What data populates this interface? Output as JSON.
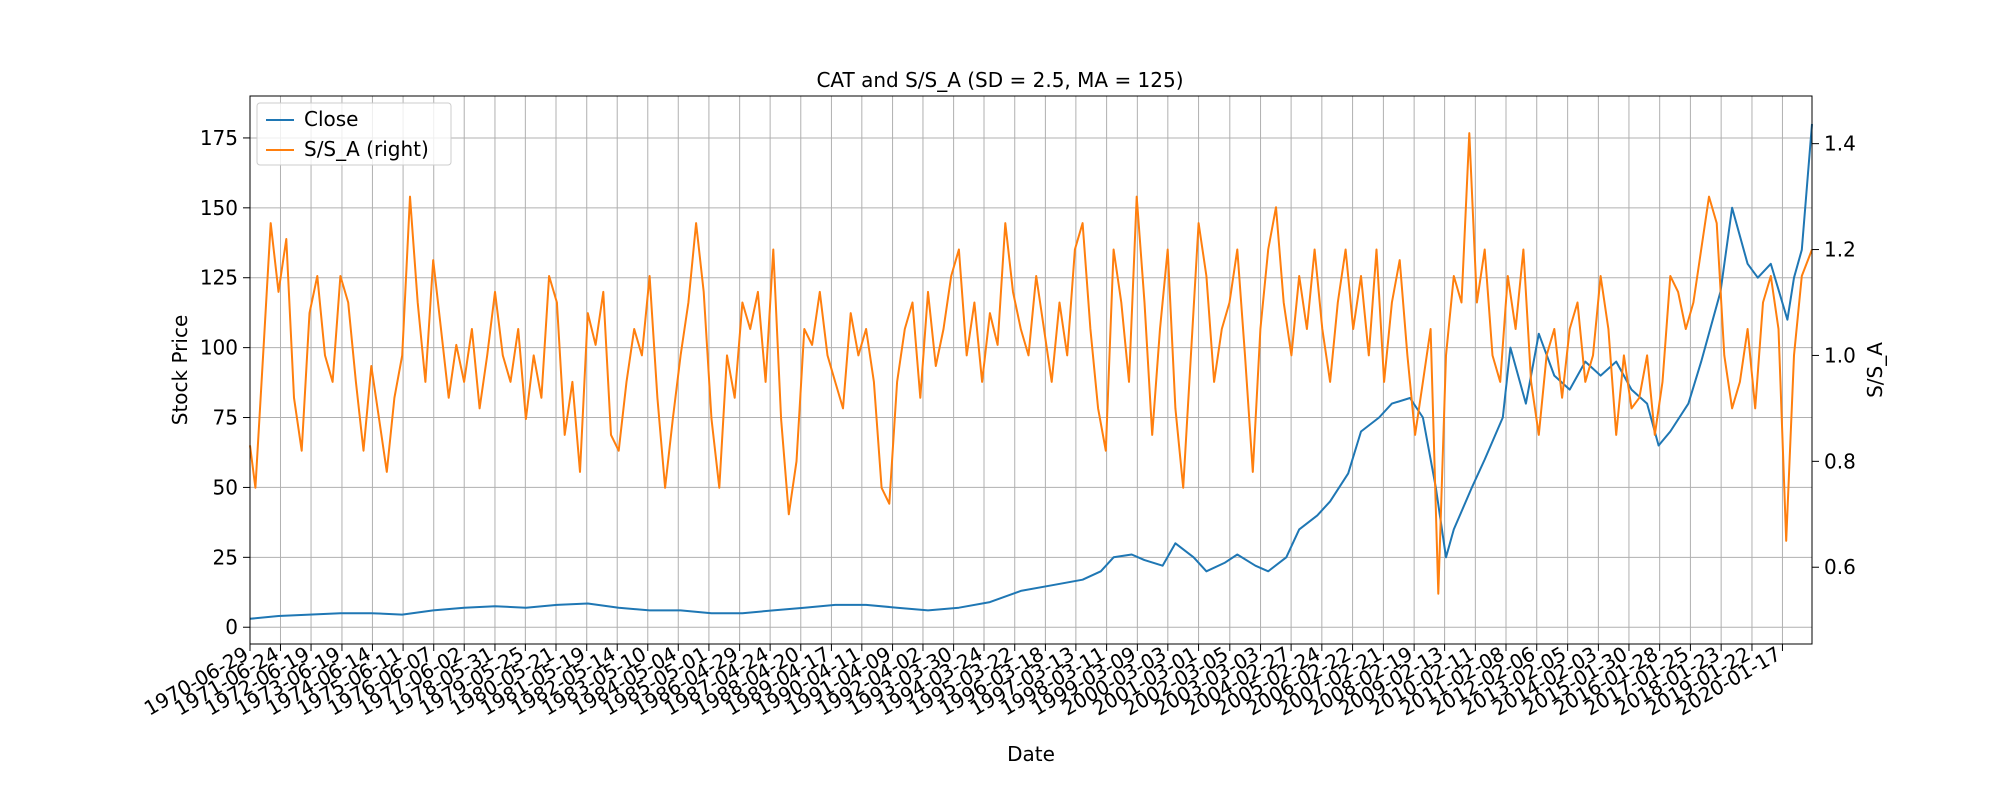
{
  "chart_data": {
    "type": "line",
    "title": "CAT and S/S_A (SD = 2.5, MA = 125)",
    "xlabel": "Date",
    "ylabel": "Stock Price",
    "ylabel_right": "S/S_A",
    "xlim": [
      "1970-06-29",
      "2020-12-31"
    ],
    "ylim": [
      -6,
      190
    ],
    "ylim_right": [
      0.455,
      1.49
    ],
    "yticks": [
      0,
      25,
      50,
      75,
      100,
      125,
      150,
      175
    ],
    "yticks_right": [
      0.6,
      0.8,
      1.0,
      1.2,
      1.4
    ],
    "ytick_labels_right": [
      "0.6",
      "0.8",
      "1.0",
      "1.2",
      "1.4"
    ],
    "xticks": [
      "1970-06-29",
      "1971-06-24",
      "1972-06-19",
      "1973-06-19",
      "1974-06-14",
      "1975-06-11",
      "1976-06-07",
      "1977-06-02",
      "1978-05-31",
      "1979-05-25",
      "1980-05-21",
      "1981-05-19",
      "1982-05-14",
      "1983-05-10",
      "1984-05-04",
      "1985-05-01",
      "1986-04-29",
      "1987-04-24",
      "1988-04-20",
      "1989-04-17",
      "1990-04-11",
      "1991-04-09",
      "1992-04-02",
      "1993-03-30",
      "1994-03-24",
      "1995-03-22",
      "1996-03-18",
      "1997-03-13",
      "1998-03-11",
      "1999-03-09",
      "2000-03-03",
      "2001-03-01",
      "2002-03-05",
      "2003-03-03",
      "2004-02-27",
      "2005-02-24",
      "2006-02-22",
      "2007-02-21",
      "2008-02-19",
      "2009-02-13",
      "2010-02-11",
      "2011-02-08",
      "2012-02-06",
      "2013-02-05",
      "2014-02-03",
      "2015-01-30",
      "2016-01-28",
      "2017-01-25",
      "2018-01-23",
      "2019-01-22",
      "2020-01-17"
    ],
    "grid": true,
    "legend": "upper left",
    "series": [
      {
        "name": "Close",
        "axis": "left",
        "color": "#1f77b4",
        "x": [
          "1970-06-29",
          "1971-06-01",
          "1972-06-01",
          "1973-06-01",
          "1974-06-01",
          "1975-06-01",
          "1976-06-01",
          "1977-06-01",
          "1978-06-01",
          "1979-06-01",
          "1980-06-01",
          "1981-06-01",
          "1982-06-01",
          "1983-06-01",
          "1984-06-01",
          "1985-06-01",
          "1986-06-01",
          "1987-06-01",
          "1988-06-01",
          "1989-06-01",
          "1990-06-01",
          "1991-06-01",
          "1992-06-01",
          "1993-06-01",
          "1994-06-01",
          "1995-06-01",
          "1996-06-01",
          "1997-06-01",
          "1998-01-01",
          "1998-06-01",
          "1999-01-01",
          "1999-06-01",
          "2000-01-01",
          "2000-06-01",
          "2001-01-01",
          "2001-06-01",
          "2002-01-01",
          "2002-06-01",
          "2003-01-01",
          "2003-06-01",
          "2004-01-01",
          "2004-06-01",
          "2005-01-01",
          "2005-06-01",
          "2006-01-01",
          "2006-06-01",
          "2007-01-01",
          "2007-06-01",
          "2008-01-01",
          "2008-06-01",
          "2008-11-01",
          "2009-03-01",
          "2009-06-01",
          "2010-01-01",
          "2010-06-01",
          "2011-01-01",
          "2011-04-01",
          "2011-10-01",
          "2012-03-01",
          "2012-09-01",
          "2013-03-01",
          "2013-09-01",
          "2014-03-01",
          "2014-09-01",
          "2015-03-01",
          "2015-09-01",
          "2016-01-15",
          "2016-06-01",
          "2017-01-01",
          "2017-06-01",
          "2018-01-15",
          "2018-06-01",
          "2018-12-01",
          "2019-04-01",
          "2019-09-01",
          "2020-03-15",
          "2020-06-01",
          "2020-09-01",
          "2020-12-31"
        ],
        "values": [
          3,
          4,
          4.5,
          5,
          5,
          4.5,
          6,
          7,
          7.5,
          7,
          8,
          8.5,
          7,
          6,
          6,
          5,
          5,
          6,
          7,
          8,
          8,
          7,
          6,
          7,
          9,
          13,
          15,
          17,
          20,
          25,
          26,
          24,
          22,
          30,
          25,
          20,
          23,
          26,
          22,
          20,
          25,
          35,
          40,
          45,
          55,
          70,
          75,
          80,
          82,
          75,
          50,
          25,
          35,
          50,
          60,
          75,
          100,
          80,
          105,
          90,
          85,
          95,
          90,
          95,
          85,
          80,
          65,
          70,
          80,
          95,
          120,
          150,
          130,
          125,
          130,
          110,
          125,
          135,
          180
        ]
      },
      {
        "name": "S/S_A (right)",
        "axis": "right",
        "color": "#ff7f0e",
        "x": [
          "1970-06-29",
          "1970-09-01",
          "1970-12-01",
          "1971-03-01",
          "1971-06-01",
          "1971-09-01",
          "1971-12-01",
          "1972-03-01",
          "1972-06-01",
          "1972-09-01",
          "1972-12-01",
          "1973-03-01",
          "1973-06-01",
          "1973-09-01",
          "1973-12-01",
          "1974-03-01",
          "1974-06-01",
          "1974-09-01",
          "1974-12-01",
          "1975-03-01",
          "1975-06-01",
          "1975-09-01",
          "1975-12-01",
          "1976-03-01",
          "1976-06-01",
          "1976-09-01",
          "1976-12-01",
          "1977-03-01",
          "1977-06-01",
          "1977-09-01",
          "1977-12-01",
          "1978-03-01",
          "1978-06-01",
          "1978-09-01",
          "1978-12-01",
          "1979-03-01",
          "1979-06-01",
          "1979-09-01",
          "1979-12-01",
          "1980-03-01",
          "1980-06-01",
          "1980-09-01",
          "1980-12-01",
          "1981-03-01",
          "1981-06-01",
          "1981-09-01",
          "1981-12-01",
          "1982-03-01",
          "1982-06-01",
          "1982-09-01",
          "1982-12-01",
          "1983-03-01",
          "1983-06-01",
          "1983-09-01",
          "1983-12-01",
          "1984-03-01",
          "1984-06-01",
          "1984-09-01",
          "1984-12-01",
          "1985-03-01",
          "1985-06-01",
          "1985-09-01",
          "1985-12-01",
          "1986-03-01",
          "1986-06-01",
          "1986-09-01",
          "1986-12-01",
          "1987-03-01",
          "1987-06-01",
          "1987-09-01",
          "1987-12-01",
          "1988-03-01",
          "1988-06-01",
          "1988-09-01",
          "1988-12-01",
          "1989-03-01",
          "1989-06-01",
          "1989-09-01",
          "1989-12-01",
          "1990-03-01",
          "1990-06-01",
          "1990-09-01",
          "1990-12-01",
          "1991-03-01",
          "1991-06-01",
          "1991-09-01",
          "1991-12-01",
          "1992-03-01",
          "1992-06-01",
          "1992-09-01",
          "1992-12-01",
          "1993-03-01",
          "1993-06-01",
          "1993-09-01",
          "1993-12-01",
          "1994-03-01",
          "1994-06-01",
          "1994-09-01",
          "1994-12-01",
          "1995-03-01",
          "1995-06-01",
          "1995-09-01",
          "1995-12-01",
          "1996-03-01",
          "1996-06-01",
          "1996-09-01",
          "1996-12-01",
          "1997-03-01",
          "1997-06-01",
          "1997-09-01",
          "1997-12-01",
          "1998-03-01",
          "1998-06-01",
          "1998-09-01",
          "1998-12-01",
          "1999-03-01",
          "1999-06-01",
          "1999-09-01",
          "1999-12-01",
          "2000-03-01",
          "2000-06-01",
          "2000-09-01",
          "2000-12-01",
          "2001-03-01",
          "2001-06-01",
          "2001-09-01",
          "2001-12-01",
          "2002-03-01",
          "2002-06-01",
          "2002-09-01",
          "2002-12-01",
          "2003-03-01",
          "2003-06-01",
          "2003-09-01",
          "2003-12-01",
          "2004-03-01",
          "2004-06-01",
          "2004-09-01",
          "2004-12-01",
          "2005-03-01",
          "2005-06-01",
          "2005-09-01",
          "2005-12-01",
          "2006-03-01",
          "2006-06-01",
          "2006-09-01",
          "2006-12-01",
          "2007-03-01",
          "2007-06-01",
          "2007-09-01",
          "2007-12-01",
          "2008-03-01",
          "2008-06-01",
          "2008-09-01",
          "2008-12-01",
          "2009-03-01",
          "2009-06-01",
          "2009-09-01",
          "2009-12-01",
          "2010-03-01",
          "2010-06-01",
          "2010-09-01",
          "2010-12-01",
          "2011-03-01",
          "2011-06-01",
          "2011-09-01",
          "2011-12-01",
          "2012-03-01",
          "2012-06-01",
          "2012-09-01",
          "2012-12-01",
          "2013-03-01",
          "2013-06-01",
          "2013-09-01",
          "2013-12-01",
          "2014-03-01",
          "2014-06-01",
          "2014-09-01",
          "2014-12-01",
          "2015-03-01",
          "2015-06-01",
          "2015-09-01",
          "2015-12-01",
          "2016-03-01",
          "2016-06-01",
          "2016-09-01",
          "2016-12-01",
          "2017-03-01",
          "2017-06-01",
          "2017-09-01",
          "2017-12-01",
          "2018-03-01",
          "2018-06-01",
          "2018-09-01",
          "2018-12-01",
          "2019-03-01",
          "2019-06-01",
          "2019-09-01",
          "2019-12-01",
          "2020-03-01",
          "2020-06-01",
          "2020-09-01",
          "2020-12-31"
        ],
        "values": [
          0.83,
          0.75,
          1.0,
          1.25,
          1.12,
          1.22,
          0.92,
          0.82,
          1.08,
          1.15,
          1.0,
          0.95,
          1.15,
          1.1,
          0.95,
          0.82,
          0.98,
          0.88,
          0.78,
          0.92,
          1.0,
          1.3,
          1.1,
          0.95,
          1.18,
          1.05,
          0.92,
          1.02,
          0.95,
          1.05,
          0.9,
          1.0,
          1.12,
          1.0,
          0.95,
          1.05,
          0.88,
          1.0,
          0.92,
          1.15,
          1.1,
          0.85,
          0.95,
          0.78,
          1.08,
          1.02,
          1.12,
          0.85,
          0.82,
          0.95,
          1.05,
          1.0,
          1.15,
          0.92,
          0.75,
          0.88,
          1.0,
          1.1,
          1.25,
          1.12,
          0.88,
          0.75,
          1.0,
          0.92,
          1.1,
          1.05,
          1.12,
          0.95,
          1.2,
          0.88,
          0.7,
          0.8,
          1.05,
          1.02,
          1.12,
          1.0,
          0.95,
          0.9,
          1.08,
          1.0,
          1.05,
          0.95,
          0.75,
          0.72,
          0.95,
          1.05,
          1.1,
          0.92,
          1.12,
          0.98,
          1.05,
          1.15,
          1.2,
          1.0,
          1.1,
          0.95,
          1.08,
          1.02,
          1.25,
          1.12,
          1.05,
          1.0,
          1.15,
          1.05,
          0.95,
          1.1,
          1.0,
          1.2,
          1.25,
          1.05,
          0.9,
          0.82,
          1.2,
          1.1,
          0.95,
          1.3,
          1.1,
          0.85,
          1.05,
          1.2,
          0.9,
          0.75,
          1.0,
          1.25,
          1.15,
          0.95,
          1.05,
          1.1,
          1.2,
          1.0,
          0.78,
          1.05,
          1.2,
          1.28,
          1.1,
          1.0,
          1.15,
          1.05,
          1.2,
          1.05,
          0.95,
          1.1,
          1.2,
          1.05,
          1.15,
          1.0,
          1.2,
          0.95,
          1.1,
          1.18,
          1.0,
          0.85,
          0.95,
          1.05,
          0.55,
          1.0,
          1.15,
          1.1,
          1.42,
          1.1,
          1.2,
          1.0,
          0.95,
          1.15,
          1.05,
          1.2,
          0.95,
          0.85,
          1.0,
          1.05,
          0.92,
          1.05,
          1.1,
          0.95,
          1.0,
          1.15,
          1.05,
          0.85,
          1.0,
          0.9,
          0.92,
          1.0,
          0.85,
          0.95,
          1.15,
          1.12,
          1.05,
          1.1,
          1.2,
          1.3,
          1.25,
          1.0,
          0.9,
          0.95,
          1.05,
          0.9,
          1.1,
          1.15,
          1.05,
          0.65,
          1.0,
          1.15,
          1.2
        ]
      }
    ]
  }
}
